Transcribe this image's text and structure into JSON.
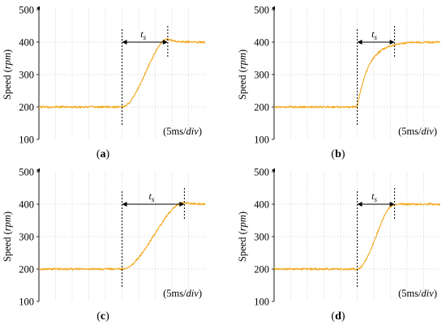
{
  "figure": {
    "colors": {
      "signal": "#f2a81d",
      "grid": "#c9c9c9",
      "axis": "#000000",
      "text": "#000000",
      "plot_bg": "#ffffff"
    },
    "ylabel_prefix": "Speed (",
    "ylabel_unit": "rpm",
    "ylabel_suffix": ")",
    "scale_prefix": "(5ms/",
    "scale_unit": "div",
    "scale_suffix": ")",
    "ts_symbol": "t",
    "ts_subscript": "s"
  },
  "chart_data": [
    {
      "type": "line",
      "panel_label": "(a)",
      "yticks": [
        "500",
        "400",
        "300",
        "200",
        "100"
      ],
      "ylim": [
        100,
        500
      ],
      "xlim": [
        0,
        40
      ],
      "grid": true,
      "baseline": 200,
      "final": 400,
      "step_time": 20,
      "settle_time": 31,
      "response": "ramp",
      "overshoot": 10,
      "noise": 3,
      "annotation": "t_s"
    },
    {
      "type": "line",
      "panel_label": "(b)",
      "yticks": [
        "500",
        "400",
        "300",
        "200",
        "100"
      ],
      "ylim": [
        100,
        500
      ],
      "xlim": [
        0,
        40
      ],
      "grid": true,
      "baseline": 200,
      "final": 400,
      "step_time": 20,
      "settle_time": 29,
      "response": "exponential",
      "overshoot": 0,
      "noise": 3,
      "annotation": "t_s"
    },
    {
      "type": "line",
      "panel_label": "(c)",
      "yticks": [
        "500",
        "400",
        "300",
        "200",
        "100"
      ],
      "ylim": [
        100,
        500
      ],
      "xlim": [
        0,
        40
      ],
      "grid": true,
      "baseline": 200,
      "final": 400,
      "step_time": 20,
      "settle_time": 35,
      "response": "ramp",
      "overshoot": 5,
      "noise": 3,
      "annotation": "t_s"
    },
    {
      "type": "line",
      "panel_label": "(d)",
      "yticks": [
        "500",
        "400",
        "300",
        "200",
        "100"
      ],
      "ylim": [
        100,
        500
      ],
      "xlim": [
        0,
        40
      ],
      "grid": true,
      "baseline": 200,
      "final": 400,
      "step_time": 20,
      "settle_time": 29,
      "response": "ramp",
      "overshoot": 0,
      "noise": 3,
      "annotation": "t_s"
    }
  ]
}
